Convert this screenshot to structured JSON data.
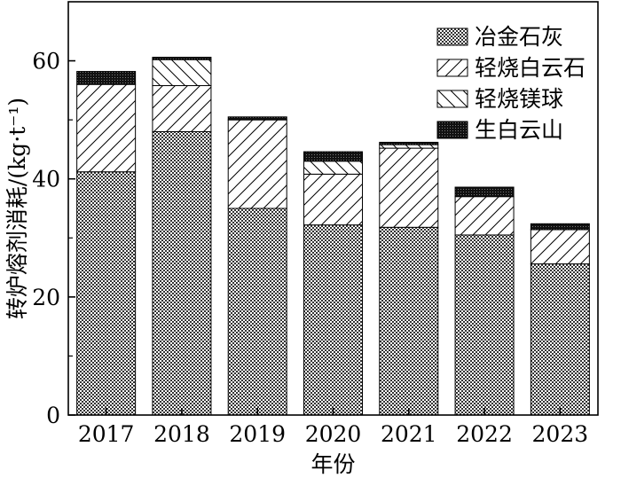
{
  "chart_data": {
    "type": "bar",
    "stacked": true,
    "categories": [
      "2017",
      "2018",
      "2019",
      "2020",
      "2021",
      "2022",
      "2023"
    ],
    "series": [
      {
        "name": "冶金石灰",
        "pattern": "dense-checker",
        "values": [
          41.2,
          48.0,
          35.0,
          32.2,
          31.8,
          30.5,
          25.6
        ]
      },
      {
        "name": "轻烧白云石",
        "pattern": "diagonal-slash",
        "values": [
          14.8,
          7.8,
          15.0,
          8.6,
          13.4,
          6.5,
          5.8
        ]
      },
      {
        "name": "轻烧镁球",
        "pattern": "diagonal-backslash",
        "values": [
          0.0,
          4.4,
          0.0,
          2.2,
          0.6,
          0.0,
          0.0
        ]
      },
      {
        "name": "生白云山",
        "pattern": "solid-dark",
        "values": [
          2.2,
          0.4,
          0.5,
          1.6,
          0.4,
          1.6,
          1.0
        ]
      }
    ],
    "xlabel": "年份",
    "ylabel": "转炉熔剂消耗/(kg·t⁻¹)",
    "ylim": [
      0,
      70
    ],
    "yticks": [
      0,
      20,
      40,
      60
    ],
    "grid": false,
    "legend_position": "top-right"
  }
}
